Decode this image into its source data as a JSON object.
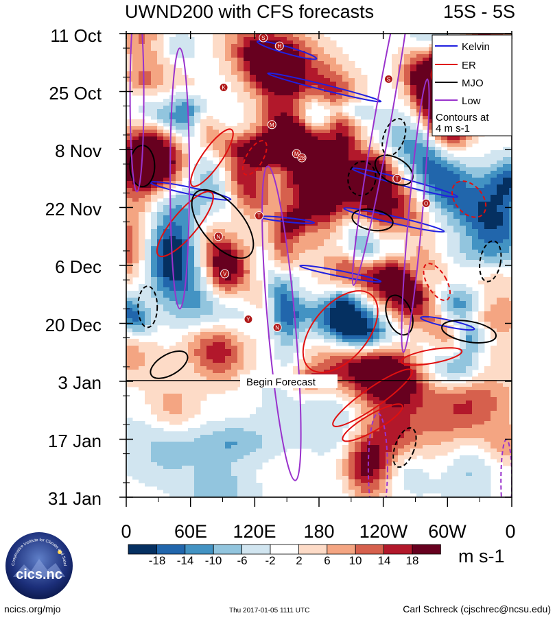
{
  "chart_data": {
    "type": "heatmap",
    "title": "UWND200 with CFS forecasts",
    "subtitle": "15S - 5S",
    "x_tick_labels": [
      "0",
      "60E",
      "120E",
      "180",
      "120W",
      "60W",
      "0"
    ],
    "x_tick_values_deg_east": [
      0,
      60,
      120,
      180,
      240,
      300,
      360
    ],
    "y_tick_labels": [
      "11 Oct",
      "25 Oct",
      "8 Nov",
      "22 Nov",
      "6 Dec",
      "20 Dec",
      "3 Jan",
      "17 Jan",
      "31 Jan"
    ],
    "y_tick_day_offsets": [
      0,
      14,
      28,
      42,
      56,
      70,
      84,
      98,
      112
    ],
    "forecast_start_day": 84,
    "forecast_label": "Begin Forecast",
    "legend": [
      {
        "name": "Kelvin",
        "color": "#2020e0"
      },
      {
        "name": "ER",
        "color": "#e01010"
      },
      {
        "name": "MJO",
        "color": "#000000"
      },
      {
        "name": "Low",
        "color": "#9932cc"
      }
    ],
    "contour_note_line1": "Contours at",
    "contour_note_line2": "4 m s-1",
    "colorbar": {
      "labels": [
        "-18",
        "-14",
        "-10",
        "-6",
        "-2",
        "2",
        "6",
        "10",
        "14",
        "18"
      ],
      "levels": [
        -18,
        -14,
        -10,
        -6,
        -2,
        2,
        6,
        10,
        14,
        18
      ],
      "colors": [
        "#053061",
        "#2166ac",
        "#4393c3",
        "#92c5de",
        "#d1e5f0",
        "#ffffff",
        "#fddbc7",
        "#f4a582",
        "#d6604d",
        "#b2182b",
        "#67001f"
      ],
      "units": "m s-1"
    },
    "storms": [
      {
        "label": "S",
        "lon": 128,
        "day": 1
      },
      {
        "label": "H",
        "lon": 143,
        "day": 3
      },
      {
        "label": "K",
        "lon": 91,
        "day": 13
      },
      {
        "label": "S",
        "lon": 245,
        "day": 11
      },
      {
        "label": "M",
        "lon": 136,
        "day": 22
      },
      {
        "label": "M",
        "lon": 159,
        "day": 29
      },
      {
        "label": "28",
        "lon": 164,
        "day": 30
      },
      {
        "label": "T",
        "lon": 253,
        "day": 35
      },
      {
        "label": "O",
        "lon": 280,
        "day": 41
      },
      {
        "label": "T",
        "lon": 124,
        "day": 44
      },
      {
        "label": "N",
        "lon": 86,
        "day": 49
      },
      {
        "label": "V",
        "lon": 92,
        "day": 58
      },
      {
        "label": "Y",
        "lon": 114,
        "day": 69
      },
      {
        "label": "N",
        "lon": 141,
        "day": 71
      }
    ]
  },
  "footer": {
    "left": "ncics.org/mjo",
    "center": "Thu 2017-01-05 1111 UTC",
    "right": "Carl Schreck (cjschrec@ncsu.edu)"
  },
  "logo": {
    "text": "cics.nc",
    "ring_text": "Cooperative Institute for Climate and Satellites"
  }
}
